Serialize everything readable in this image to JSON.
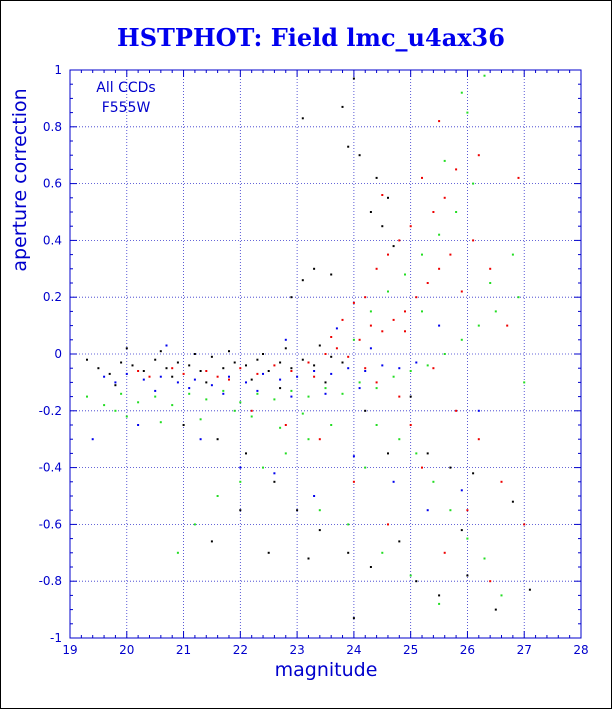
{
  "chart_data": {
    "type": "scatter",
    "title": "HSTPHOT: Field lmc_u4ax36",
    "xlabel": "magnitude",
    "ylabel": "aperture correction",
    "xlim": [
      19,
      28
    ],
    "ylim": [
      -1,
      1
    ],
    "x_ticks": [
      "19",
      "20",
      "21",
      "22",
      "23",
      "24",
      "25",
      "26",
      "27",
      "28"
    ],
    "y_ticks": [
      "-1",
      "-0.8",
      "-0.6",
      "-0.4",
      "-0.2",
      "0",
      "0.2",
      "0.4",
      "0.6",
      "0.8",
      "1"
    ],
    "grid": true,
    "grid_style": "dotted",
    "annotations": [
      "All CCDs",
      "F555W"
    ],
    "colors": {
      "axes": "#0000cc",
      "title": "#0000ee",
      "grid": "#3333cc"
    },
    "series": [
      {
        "color": "#000000",
        "points": [
          [
            19.3,
            -0.02
          ],
          [
            19.5,
            -0.05
          ],
          [
            19.7,
            -0.07
          ],
          [
            19.9,
            -0.03
          ],
          [
            20.1,
            -0.04
          ],
          [
            20.3,
            -0.06
          ],
          [
            20.5,
            -0.02
          ],
          [
            20.7,
            -0.05
          ],
          [
            20.9,
            -0.03
          ],
          [
            21.1,
            -0.04
          ],
          [
            21.3,
            -0.06
          ],
          [
            21.5,
            -0.01
          ],
          [
            21.7,
            -0.05
          ],
          [
            21.9,
            -0.03
          ],
          [
            22.1,
            -0.04
          ],
          [
            22.3,
            -0.02
          ],
          [
            22.5,
            -0.06
          ],
          [
            22.7,
            -0.03
          ],
          [
            22.9,
            -0.05
          ],
          [
            23.1,
            -0.02
          ],
          [
            23.3,
            -0.04
          ],
          [
            23.6,
            -0.01
          ],
          [
            23.8,
            -0.03
          ],
          [
            20.0,
            0.02
          ],
          [
            20.6,
            0.01
          ],
          [
            21.2,
            0.0
          ],
          [
            21.8,
            0.01
          ],
          [
            22.4,
            0.0
          ],
          [
            22.8,
            0.02
          ],
          [
            23.4,
            0.03
          ],
          [
            22.9,
            0.2
          ],
          [
            23.1,
            0.26
          ],
          [
            23.3,
            0.3
          ],
          [
            23.6,
            0.28
          ],
          [
            23.1,
            0.83
          ],
          [
            23.8,
            0.87
          ],
          [
            24.0,
            0.97
          ],
          [
            23.9,
            0.73
          ],
          [
            24.1,
            0.7
          ],
          [
            24.3,
            0.5
          ],
          [
            24.5,
            0.45
          ],
          [
            24.7,
            0.38
          ],
          [
            24.6,
            0.55
          ],
          [
            24.4,
            0.62
          ],
          [
            21.0,
            -0.25
          ],
          [
            21.6,
            -0.3
          ],
          [
            22.1,
            -0.35
          ],
          [
            22.6,
            -0.45
          ],
          [
            23.0,
            -0.55
          ],
          [
            23.4,
            -0.62
          ],
          [
            23.9,
            -0.7
          ],
          [
            24.3,
            -0.75
          ],
          [
            24.8,
            -0.66
          ],
          [
            25.1,
            -0.8
          ],
          [
            25.5,
            -0.85
          ],
          [
            26.0,
            -0.78
          ],
          [
            26.5,
            -0.9
          ],
          [
            27.1,
            -0.83
          ],
          [
            21.5,
            -0.66
          ],
          [
            22.0,
            -0.55
          ],
          [
            22.5,
            -0.7
          ],
          [
            23.2,
            -0.72
          ],
          [
            24.0,
            -0.93
          ],
          [
            25.3,
            -0.35
          ],
          [
            25.7,
            -0.4
          ],
          [
            26.1,
            -0.42
          ],
          [
            24.2,
            -0.2
          ],
          [
            25.0,
            -0.15
          ],
          [
            26.8,
            -0.52
          ],
          [
            19.8,
            -0.11
          ],
          [
            20.8,
            -0.08
          ],
          [
            21.4,
            -0.1
          ],
          [
            22.2,
            -0.09
          ],
          [
            22.7,
            -0.12
          ],
          [
            23.5,
            -0.1
          ],
          [
            24.6,
            -0.35
          ],
          [
            25.9,
            -0.62
          ]
        ]
      },
      {
        "color": "#ee0000",
        "points": [
          [
            20.2,
            -0.06
          ],
          [
            20.4,
            -0.08
          ],
          [
            20.8,
            -0.05
          ],
          [
            21.0,
            -0.07
          ],
          [
            21.4,
            -0.06
          ],
          [
            21.6,
            -0.08
          ],
          [
            22.0,
            -0.05
          ],
          [
            22.3,
            -0.07
          ],
          [
            22.6,
            -0.04
          ],
          [
            22.9,
            -0.06
          ],
          [
            23.2,
            -0.03
          ],
          [
            23.5,
            0.0
          ],
          [
            23.7,
            0.02
          ],
          [
            23.9,
            -0.01
          ],
          [
            24.1,
            0.05
          ],
          [
            24.3,
            0.1
          ],
          [
            24.5,
            0.08
          ],
          [
            24.7,
            0.12
          ],
          [
            24.9,
            0.15
          ],
          [
            25.1,
            0.2
          ],
          [
            25.3,
            0.25
          ],
          [
            25.5,
            0.3
          ],
          [
            25.7,
            0.35
          ],
          [
            25.9,
            0.22
          ],
          [
            26.1,
            0.4
          ],
          [
            26.4,
            0.3
          ],
          [
            26.7,
            0.1
          ],
          [
            24.2,
            0.2
          ],
          [
            24.4,
            0.3
          ],
          [
            24.6,
            0.35
          ],
          [
            24.8,
            0.4
          ],
          [
            25.0,
            0.45
          ],
          [
            25.4,
            0.5
          ],
          [
            25.6,
            0.55
          ],
          [
            25.8,
            0.65
          ],
          [
            26.2,
            0.7
          ],
          [
            24.5,
            0.56
          ],
          [
            25.2,
            0.62
          ],
          [
            23.6,
            0.06
          ],
          [
            23.8,
            0.12
          ],
          [
            24.0,
            0.18
          ],
          [
            24.2,
            -0.05
          ],
          [
            24.4,
            -0.1
          ],
          [
            24.8,
            -0.15
          ],
          [
            25.0,
            -0.25
          ],
          [
            25.4,
            -0.05
          ],
          [
            25.8,
            -0.2
          ],
          [
            26.2,
            -0.3
          ],
          [
            26.6,
            -0.45
          ],
          [
            27.0,
            -0.6
          ],
          [
            25.6,
            -0.7
          ],
          [
            26.0,
            -0.55
          ],
          [
            26.4,
            -0.8
          ],
          [
            25.2,
            -0.4
          ],
          [
            24.6,
            -0.6
          ],
          [
            24.0,
            -0.45
          ],
          [
            23.4,
            -0.3
          ],
          [
            22.8,
            -0.25
          ],
          [
            22.2,
            -0.2
          ],
          [
            26.9,
            0.62
          ],
          [
            25.5,
            0.82
          ],
          [
            24.9,
            0.08
          ],
          [
            23.3,
            -0.08
          ],
          [
            21.8,
            -0.09
          ]
        ]
      },
      {
        "color": "#0000ee",
        "points": [
          [
            19.6,
            -0.08
          ],
          [
            19.8,
            -0.1
          ],
          [
            20.0,
            -0.07
          ],
          [
            20.3,
            -0.09
          ],
          [
            20.6,
            -0.08
          ],
          [
            20.9,
            -0.1
          ],
          [
            21.2,
            -0.09
          ],
          [
            21.5,
            -0.11
          ],
          [
            21.8,
            -0.08
          ],
          [
            22.1,
            -0.1
          ],
          [
            22.4,
            -0.07
          ],
          [
            22.7,
            -0.09
          ],
          [
            23.0,
            -0.08
          ],
          [
            23.3,
            -0.06
          ],
          [
            23.6,
            -0.07
          ],
          [
            23.9,
            -0.05
          ],
          [
            24.2,
            -0.06
          ],
          [
            24.5,
            -0.04
          ],
          [
            24.8,
            -0.05
          ],
          [
            25.1,
            -0.03
          ],
          [
            20.5,
            -0.13
          ],
          [
            21.1,
            -0.12
          ],
          [
            21.7,
            -0.14
          ],
          [
            22.3,
            -0.13
          ],
          [
            22.9,
            -0.15
          ],
          [
            23.5,
            -0.14
          ],
          [
            24.1,
            -0.12
          ],
          [
            21.3,
            -0.3
          ],
          [
            22.0,
            -0.4
          ],
          [
            22.6,
            -0.42
          ],
          [
            23.3,
            -0.5
          ],
          [
            24.0,
            -0.36
          ],
          [
            24.7,
            -0.45
          ],
          [
            25.3,
            -0.55
          ],
          [
            25.9,
            -0.48
          ],
          [
            19.4,
            -0.3
          ],
          [
            20.2,
            -0.25
          ],
          [
            20.7,
            0.03
          ],
          [
            22.8,
            0.05
          ],
          [
            23.7,
            0.09
          ],
          [
            24.3,
            0.02
          ],
          [
            25.5,
            0.1
          ],
          [
            26.2,
            -0.2
          ]
        ]
      },
      {
        "color": "#22dd22",
        "points": [
          [
            19.3,
            -0.15
          ],
          [
            19.6,
            -0.18
          ],
          [
            19.9,
            -0.14
          ],
          [
            20.2,
            -0.17
          ],
          [
            20.5,
            -0.15
          ],
          [
            20.8,
            -0.18
          ],
          [
            21.1,
            -0.14
          ],
          [
            21.4,
            -0.16
          ],
          [
            21.7,
            -0.13
          ],
          [
            22.0,
            -0.17
          ],
          [
            22.3,
            -0.14
          ],
          [
            22.6,
            -0.16
          ],
          [
            22.9,
            -0.13
          ],
          [
            23.2,
            -0.15
          ],
          [
            23.5,
            -0.12
          ],
          [
            23.8,
            -0.14
          ],
          [
            24.1,
            -0.1
          ],
          [
            24.4,
            -0.12
          ],
          [
            24.7,
            -0.08
          ],
          [
            25.0,
            -0.06
          ],
          [
            25.3,
            -0.04
          ],
          [
            25.6,
            0.0
          ],
          [
            25.9,
            0.05
          ],
          [
            26.2,
            0.1
          ],
          [
            26.5,
            0.15
          ],
          [
            24.0,
            0.05
          ],
          [
            24.3,
            0.15
          ],
          [
            24.6,
            0.22
          ],
          [
            24.9,
            0.28
          ],
          [
            25.2,
            0.35
          ],
          [
            25.5,
            0.42
          ],
          [
            25.8,
            0.5
          ],
          [
            26.1,
            0.6
          ],
          [
            26.4,
            0.25
          ],
          [
            26.8,
            0.35
          ],
          [
            25.6,
            0.68
          ],
          [
            26.0,
            0.85
          ],
          [
            26.3,
            0.98
          ],
          [
            25.9,
            0.92
          ],
          [
            24.4,
            -0.25
          ],
          [
            24.8,
            -0.3
          ],
          [
            25.1,
            -0.35
          ],
          [
            25.4,
            -0.45
          ],
          [
            25.7,
            -0.55
          ],
          [
            26.0,
            -0.65
          ],
          [
            26.3,
            -0.72
          ],
          [
            26.6,
            -0.85
          ],
          [
            23.6,
            -0.25
          ],
          [
            23.2,
            -0.3
          ],
          [
            22.8,
            -0.35
          ],
          [
            22.4,
            -0.4
          ],
          [
            22.0,
            -0.45
          ],
          [
            21.6,
            -0.5
          ],
          [
            21.2,
            -0.6
          ],
          [
            20.9,
            -0.7
          ],
          [
            24.5,
            -0.7
          ],
          [
            25.0,
            -0.78
          ],
          [
            25.5,
            -0.88
          ],
          [
            23.9,
            -0.6
          ],
          [
            23.4,
            -0.55
          ],
          [
            20.0,
            -0.22
          ],
          [
            20.6,
            -0.24
          ],
          [
            21.3,
            -0.23
          ],
          [
            22.2,
            -0.22
          ],
          [
            22.7,
            -0.26
          ],
          [
            23.1,
            -0.21
          ],
          [
            27.0,
            -0.1
          ],
          [
            26.9,
            0.2
          ],
          [
            24.2,
            -0.4
          ],
          [
            25.2,
            0.15
          ],
          [
            19.8,
            -0.2
          ],
          [
            21.9,
            -0.2
          ]
        ]
      }
    ]
  }
}
